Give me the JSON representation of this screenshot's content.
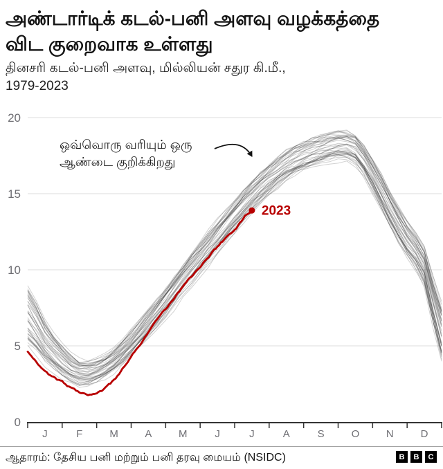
{
  "header": {
    "title_lines": [
      "அண்டார்டிக் கடல்-பனி அளவு வழக்கத்தை",
      "விட குறைவாக உள்ளது"
    ],
    "subtitle_lines": [
      "தினசரி கடல்-பனி அளவு, மில்லியன் சதுர கி.மீ.,",
      "1979-2023"
    ]
  },
  "annotation": {
    "lines": [
      "ஒவ்வொரு வரியும் ஒரு",
      "ஆண்டை குறிக்கிறது"
    ]
  },
  "footer": {
    "source": "ஆதாரம்: தேசிய பனி மற்றும் பனி தரவு மையம் (NSIDC)",
    "logo_letters": [
      "B",
      "B",
      "C"
    ]
  },
  "colors": {
    "highlight": "#b80000",
    "gray_line": "rgba(28,28,28,0.20)",
    "grid": "#dedede",
    "axis": "#333333",
    "tick_label": "#6e6e73",
    "annotation_arrow": "#111111"
  },
  "chart_data": {
    "type": "line",
    "title": "அண்டார்டிக் கடல்-பனி அளவு வழக்கத்தை விட குறைவாக உள்ளது",
    "subtitle": "தினசரி கடல்-பனி அளவு, மில்லியன் சதுர கி.மீ., 1979-2023",
    "xlabel": "",
    "ylabel": "மில்லியன் சதுர கி.மீ.",
    "ylim": [
      0,
      20
    ],
    "yticks": [
      0,
      5,
      10,
      15,
      20
    ],
    "grid": true,
    "month_labels": [
      "J",
      "F",
      "M",
      "A",
      "M",
      "J",
      "J",
      "A",
      "S",
      "O",
      "N",
      "D"
    ],
    "background_years": {
      "count": 44,
      "years": "1979-2022",
      "note": "one gray line per year",
      "month": [
        0,
        0.5,
        1,
        1.5,
        2,
        2.5,
        3,
        3.5,
        4,
        4.5,
        5,
        5.5,
        6,
        6.5,
        7,
        7.5,
        8,
        8.5,
        9,
        9.5,
        10,
        10.5,
        11,
        11.5,
        12
      ],
      "mean_extent": [
        7.0,
        5.2,
        4.0,
        3.2,
        3.4,
        4.1,
        5.2,
        6.5,
        7.9,
        9.4,
        10.8,
        12.2,
        13.6,
        14.9,
        16.0,
        16.9,
        17.5,
        17.9,
        18.2,
        17.9,
        16.2,
        14.0,
        12.0,
        10.2,
        5.9
      ],
      "spread": [
        1.9,
        1.3,
        1.0,
        0.75,
        0.7,
        0.75,
        0.8,
        0.85,
        0.9,
        0.95,
        1.0,
        1.0,
        1.0,
        1.0,
        1.0,
        0.95,
        0.9,
        0.9,
        0.85,
        0.9,
        1.0,
        1.1,
        1.1,
        1.2,
        1.7
      ]
    },
    "series_2023": {
      "name": "2023",
      "end_label": "2023",
      "month": [
        0,
        0.5,
        1,
        1.5,
        2,
        2.5,
        3,
        3.5,
        4,
        4.5,
        5,
        5.5,
        6,
        6.5
      ],
      "extent": [
        4.6,
        3.3,
        2.6,
        2.0,
        1.9,
        2.7,
        4.3,
        5.9,
        7.4,
        8.9,
        10.2,
        11.5,
        12.7,
        13.9
      ]
    }
  }
}
